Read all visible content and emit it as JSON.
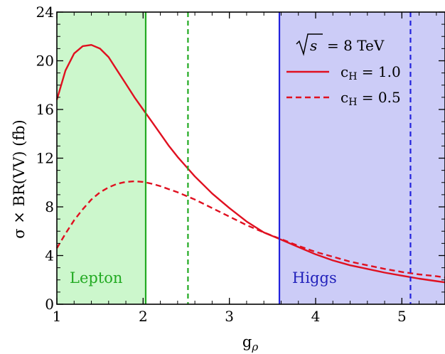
{
  "chart_data": {
    "type": "line",
    "xlabel_main": "g",
    "xlabel_sub": "ρ",
    "ylabel": "σ × BR(VV) (fb)",
    "xlim": [
      1,
      5.5
    ],
    "ylim": [
      0,
      24
    ],
    "xticks": [
      "1",
      "2",
      "3",
      "4",
      "5"
    ],
    "yticks": [
      "0",
      "4",
      "8",
      "12",
      "16",
      "20",
      "24"
    ],
    "grid": false,
    "annotation": {
      "text": "= 8 TeV",
      "sqrt_symbol": "s"
    },
    "regions": [
      {
        "label": "Lepton",
        "x": [
          1,
          2.03
        ],
        "color": "#ccf7cc",
        "text_color": "#22aa22"
      },
      {
        "label": "Higgs",
        "x": [
          3.58,
          5.5
        ],
        "color": "#ccccf7",
        "text_color": "#2222bb"
      }
    ],
    "vertical_lines": [
      {
        "x": 2.03,
        "style": "solid",
        "color": "#22aa22"
      },
      {
        "x": 2.52,
        "style": "dashed",
        "color": "#22aa22"
      },
      {
        "x": 3.58,
        "style": "solid",
        "color": "#2222dd"
      },
      {
        "x": 5.1,
        "style": "dashed",
        "color": "#2222dd"
      }
    ],
    "legend_position": "top-right",
    "series": [
      {
        "name": "cH = 1.0",
        "legend_main": "c",
        "legend_sub": "H",
        "legend_value": " = 1.0",
        "style": "solid",
        "color": "#e01020",
        "x": [
          1.0,
          1.1,
          1.2,
          1.3,
          1.4,
          1.5,
          1.6,
          1.7,
          1.8,
          1.9,
          2.0,
          2.1,
          2.2,
          2.3,
          2.4,
          2.5,
          2.6,
          2.7,
          2.8,
          2.9,
          3.0,
          3.2,
          3.4,
          3.6,
          3.8,
          4.0,
          4.2,
          4.4,
          4.6,
          4.8,
          5.0,
          5.2,
          5.4,
          5.5
        ],
        "y": [
          16.8,
          19.2,
          20.6,
          21.2,
          21.3,
          21.0,
          20.3,
          19.2,
          18.1,
          17.0,
          16.0,
          15.0,
          14.0,
          13.0,
          12.1,
          11.3,
          10.5,
          9.8,
          9.1,
          8.5,
          7.9,
          6.8,
          5.9,
          5.3,
          4.7,
          4.1,
          3.6,
          3.2,
          2.9,
          2.6,
          2.35,
          2.1,
          1.9,
          1.8
        ]
      },
      {
        "name": "cH = 0.5",
        "legend_main": "c",
        "legend_sub": "H",
        "legend_value": " = 0.5",
        "style": "dashed",
        "color": "#e01020",
        "x": [
          1.0,
          1.1,
          1.2,
          1.3,
          1.4,
          1.5,
          1.6,
          1.7,
          1.8,
          1.9,
          2.0,
          2.1,
          2.2,
          2.3,
          2.4,
          2.5,
          2.6,
          2.7,
          2.8,
          2.9,
          3.0,
          3.2,
          3.4,
          3.6,
          3.8,
          4.0,
          4.2,
          4.4,
          4.6,
          4.8,
          5.0,
          5.2,
          5.4,
          5.5
        ],
        "y": [
          4.6,
          5.8,
          6.9,
          7.8,
          8.6,
          9.2,
          9.6,
          9.9,
          10.05,
          10.1,
          10.05,
          9.9,
          9.7,
          9.45,
          9.2,
          8.9,
          8.6,
          8.25,
          7.9,
          7.55,
          7.2,
          6.5,
          5.9,
          5.35,
          4.8,
          4.3,
          3.9,
          3.5,
          3.2,
          2.9,
          2.65,
          2.45,
          2.3,
          2.2
        ]
      }
    ]
  }
}
